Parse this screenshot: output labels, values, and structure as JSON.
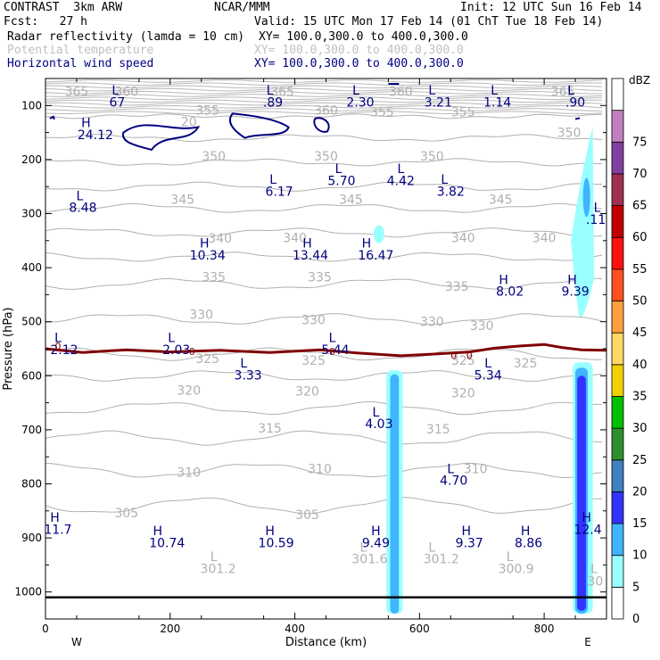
{
  "header": {
    "model": "CONTRAST  3km ARW",
    "org": "NCAR/MMM",
    "init": "Init: 12 UTC Sun 16 Feb 14",
    "fcst": "Fcst:   27 h",
    "valid": "Valid: 15 UTC Mon 17 Feb 14 (01 ChT Tue 18 Feb 14)",
    "fields": [
      {
        "name": "Radar reflectivity (lamda = 10 cm)",
        "xy": "XY= 100.0,300.0 to 400.0,300.0",
        "color": "#000000"
      },
      {
        "name": "Potential temperature",
        "xy": "XY= 100.0,300.0 to 400.0,300.0",
        "color": "#c0c0c0"
      },
      {
        "name": "Horizontal wind speed",
        "xy": "XY= 100.0,300.0 to 400.0,300.0",
        "color": "#000080"
      }
    ]
  },
  "chart_data": {
    "type": "cross-section",
    "xlabel": "Distance (km)",
    "ylabel": "Pressure (hPa)",
    "xlim": [
      0,
      900
    ],
    "ylim": [
      1050,
      50
    ],
    "x_ticks": [
      "0",
      "200",
      "400",
      "600",
      "800"
    ],
    "y_ticks": [
      "100",
      "200",
      "300",
      "400",
      "500",
      "600",
      "700",
      "800",
      "900",
      "1000"
    ],
    "x_end_labels": {
      "left": "W",
      "right": "E"
    },
    "colorbar": {
      "unit": "dBZ",
      "levels": [
        "0",
        "5",
        "10",
        "15",
        "20",
        "25",
        "30",
        "35",
        "40",
        "45",
        "50",
        "55",
        "60",
        "65",
        "70",
        "75"
      ],
      "colors": [
        "#ffffff",
        "#99ffff",
        "#40b4ff",
        "#3333ff",
        "#4080c0",
        "#2d8f2d",
        "#00c000",
        "#f0d000",
        "#ffd966",
        "#ffa040",
        "#ff5020",
        "#ff1010",
        "#c00000",
        "#a03050",
        "#8040a0",
        "#c080c0"
      ]
    },
    "theta_labels": [
      {
        "t": "365",
        "x": 50,
        "p": 82
      },
      {
        "t": "360",
        "x": 130,
        "p": 82
      },
      {
        "t": "365",
        "x": 380,
        "p": 82
      },
      {
        "t": "360",
        "x": 570,
        "p": 82
      },
      {
        "t": "365",
        "x": 830,
        "p": 82
      },
      {
        "t": "20",
        "x": 230,
        "p": 138
      },
      {
        "t": "355",
        "x": 260,
        "p": 117
      },
      {
        "t": "360",
        "x": 450,
        "p": 117
      },
      {
        "t": "355",
        "x": 540,
        "p": 120
      },
      {
        "t": "355",
        "x": 670,
        "p": 120
      },
      {
        "t": "350",
        "x": 840,
        "p": 158
      },
      {
        "t": "350",
        "x": 270,
        "p": 202
      },
      {
        "t": "350",
        "x": 450,
        "p": 202
      },
      {
        "t": "350",
        "x": 620,
        "p": 202
      },
      {
        "t": "345",
        "x": 220,
        "p": 282
      },
      {
        "t": "345",
        "x": 490,
        "p": 282
      },
      {
        "t": "345",
        "x": 730,
        "p": 282
      },
      {
        "t": "340",
        "x": 280,
        "p": 354
      },
      {
        "t": "340",
        "x": 400,
        "p": 353
      },
      {
        "t": "340",
        "x": 670,
        "p": 353
      },
      {
        "t": "340",
        "x": 800,
        "p": 353
      },
      {
        "t": "335",
        "x": 270,
        "p": 425
      },
      {
        "t": "335",
        "x": 440,
        "p": 425
      },
      {
        "t": "335",
        "x": 660,
        "p": 443
      },
      {
        "t": "330",
        "x": 250,
        "p": 495
      },
      {
        "t": "330",
        "x": 430,
        "p": 505
      },
      {
        "t": "330",
        "x": 620,
        "p": 508
      },
      {
        "t": "330",
        "x": 700,
        "p": 515
      },
      {
        "t": "325",
        "x": 260,
        "p": 576
      },
      {
        "t": "325",
        "x": 430,
        "p": 580
      },
      {
        "t": "325",
        "x": 670,
        "p": 580
      },
      {
        "t": "325",
        "x": 770,
        "p": 585
      },
      {
        "t": "320",
        "x": 230,
        "p": 635
      },
      {
        "t": "320",
        "x": 420,
        "p": 637
      },
      {
        "t": "320",
        "x": 670,
        "p": 640
      },
      {
        "t": "315",
        "x": 360,
        "p": 705
      },
      {
        "t": "315",
        "x": 630,
        "p": 707
      },
      {
        "t": "310",
        "x": 230,
        "p": 787
      },
      {
        "t": "310",
        "x": 440,
        "p": 780
      },
      {
        "t": "310",
        "x": 690,
        "p": 780
      },
      {
        "t": "305",
        "x": 130,
        "p": 862
      },
      {
        "t": "305",
        "x": 420,
        "p": 865
      }
    ],
    "pot_temp_extrema": [
      {
        "t": "L",
        "x": 270,
        "p": 943
      },
      {
        "t": "301.2",
        "x": 277,
        "p": 965
      },
      {
        "t": "L",
        "x": 510,
        "p": 925
      },
      {
        "t": "301.6",
        "x": 520,
        "p": 947
      },
      {
        "t": "L",
        "x": 620,
        "p": 925
      },
      {
        "t": "301.2",
        "x": 635,
        "p": 947
      },
      {
        "t": "L",
        "x": 745,
        "p": 943
      },
      {
        "t": "300.9",
        "x": 755,
        "p": 965
      },
      {
        "t": "L",
        "x": 880,
        "p": 965
      },
      {
        "t": "30",
        "x": 882,
        "p": 988
      }
    ],
    "wind_extrema": [
      {
        "t": "L",
        "x": 112,
        "p": 80
      },
      {
        "t": "67",
        "x": 115,
        "p": 102
      },
      {
        "t": "L",
        "x": 360,
        "p": 80
      },
      {
        "t": ".89",
        "x": 365,
        "p": 102
      },
      {
        "t": "L",
        "x": 498,
        "p": 80
      },
      {
        "t": "2.30",
        "x": 505,
        "p": 102
      },
      {
        "t": "L",
        "x": 620,
        "p": 80
      },
      {
        "t": "3.21",
        "x": 630,
        "p": 102
      },
      {
        "t": "L",
        "x": 720,
        "p": 80
      },
      {
        "t": "1.14",
        "x": 725,
        "p": 102
      },
      {
        "t": "L",
        "x": 843,
        "p": 80
      },
      {
        "t": ".90",
        "x": 850,
        "p": 102
      },
      {
        "t": "H",
        "x": 65,
        "p": 140
      },
      {
        "t": "24.12",
        "x": 80,
        "p": 162
      },
      {
        "t": "L",
        "x": 470,
        "p": 225
      },
      {
        "t": "5.70",
        "x": 475,
        "p": 247
      },
      {
        "t": "L",
        "x": 570,
        "p": 225
      },
      {
        "t": "4.42",
        "x": 570,
        "p": 247
      },
      {
        "t": "L",
        "x": 365,
        "p": 245
      },
      {
        "t": "6.17",
        "x": 375,
        "p": 267
      },
      {
        "t": "L",
        "x": 640,
        "p": 245
      },
      {
        "t": "3.82",
        "x": 650,
        "p": 267
      },
      {
        "t": "L",
        "x": 55,
        "p": 275
      },
      {
        "t": "8.48",
        "x": 60,
        "p": 297
      },
      {
        "t": "L",
        "x": 885,
        "p": 297
      },
      {
        "t": ".11",
        "x": 883,
        "p": 319
      },
      {
        "t": "H",
        "x": 255,
        "p": 363
      },
      {
        "t": "10.34",
        "x": 260,
        "p": 385
      },
      {
        "t": "H",
        "x": 420,
        "p": 363
      },
      {
        "t": "13.44",
        "x": 425,
        "p": 385
      },
      {
        "t": "H",
        "x": 515,
        "p": 363
      },
      {
        "t": "16.47",
        "x": 530,
        "p": 385
      },
      {
        "t": "H",
        "x": 735,
        "p": 430
      },
      {
        "t": "8.02",
        "x": 745,
        "p": 452
      },
      {
        "t": "H",
        "x": 845,
        "p": 430
      },
      {
        "t": "9.39",
        "x": 850,
        "p": 452
      },
      {
        "t": "L",
        "x": 20,
        "p": 538
      },
      {
        "t": "2.12",
        "x": 30,
        "p": 560
      },
      {
        "t": "L",
        "x": 202,
        "p": 538
      },
      {
        "t": "2.03",
        "x": 210,
        "p": 560
      },
      {
        "t": "L",
        "x": 460,
        "p": 538
      },
      {
        "t": "5.44",
        "x": 465,
        "p": 560
      },
      {
        "t": "L",
        "x": 318,
        "p": 585
      },
      {
        "t": "3.33",
        "x": 325,
        "p": 607
      },
      {
        "t": "L",
        "x": 710,
        "p": 585
      },
      {
        "t": "5.34",
        "x": 710,
        "p": 607
      },
      {
        "t": "L",
        "x": 530,
        "p": 675
      },
      {
        "t": "4.03",
        "x": 535,
        "p": 697
      },
      {
        "t": "L",
        "x": 650,
        "p": 780
      },
      {
        "t": "4.70",
        "x": 655,
        "p": 802
      },
      {
        "t": "H",
        "x": 15,
        "p": 870
      },
      {
        "t": "11.7",
        "x": 20,
        "p": 892
      },
      {
        "t": "H",
        "x": 180,
        "p": 895
      },
      {
        "t": "10.74",
        "x": 195,
        "p": 917
      },
      {
        "t": "H",
        "x": 360,
        "p": 895
      },
      {
        "t": "10.59",
        "x": 370,
        "p": 917
      },
      {
        "t": "H",
        "x": 530,
        "p": 895
      },
      {
        "t": "9.49",
        "x": 530,
        "p": 917
      },
      {
        "t": "H",
        "x": 675,
        "p": 895
      },
      {
        "t": "9.37",
        "x": 680,
        "p": 917
      },
      {
        "t": "H",
        "x": 770,
        "p": 895
      },
      {
        "t": "8.86",
        "x": 775,
        "p": 917
      },
      {
        "t": "H",
        "x": 868,
        "p": 870
      },
      {
        "t": "12.4",
        "x": 870,
        "p": 892
      }
    ],
    "zero_line_labels": [
      {
        "t": "0",
        "x": 20,
        "p": 545
      },
      {
        "t": "0",
        "x": 235,
        "p": 555
      },
      {
        "t": "0",
        "x": 460,
        "p": 555
      },
      {
        "t": "0",
        "x": 655,
        "p": 562
      },
      {
        "t": "0",
        "x": 680,
        "p": 562
      }
    ]
  }
}
